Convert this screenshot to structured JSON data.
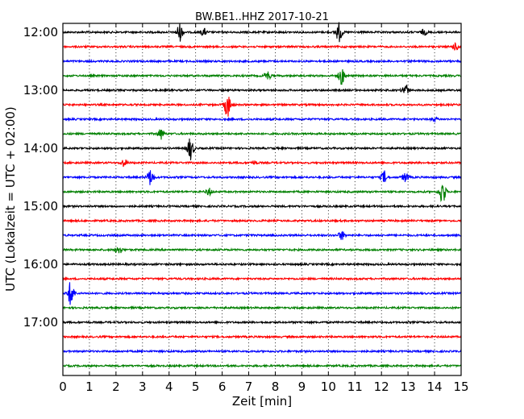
{
  "chart_data": {
    "type": "line",
    "title": "BW.BE1..HHZ 2017-10-21",
    "xlabel": "Zeit  [min]",
    "ylabel": "UTC (Lokalzeit = UTC + 02:00)",
    "xlim": [
      0,
      15
    ],
    "x_ticks": [
      "0",
      "1",
      "2",
      "3",
      "4",
      "5",
      "6",
      "7",
      "8",
      "9",
      "10",
      "11",
      "12",
      "13",
      "14",
      "15"
    ],
    "y_tick_labels": [
      "12:00",
      "13:00",
      "14:00",
      "15:00",
      "16:00",
      "17:00"
    ],
    "grid": "vertical-dotted",
    "trace_interval_min": 15,
    "colors": [
      "#000000",
      "#ff0000",
      "#0000ff",
      "#008000"
    ],
    "traces": [
      {
        "start": "12:00",
        "events": [
          {
            "t": 4.4,
            "amp": 1.0
          },
          {
            "t": 5.3,
            "amp": 0.4
          },
          {
            "t": 10.4,
            "amp": 1.1
          },
          {
            "t": 13.6,
            "amp": 0.3
          }
        ]
      },
      {
        "start": "12:15",
        "events": [
          {
            "t": 14.8,
            "amp": 0.4
          }
        ]
      },
      {
        "start": "12:30",
        "events": []
      },
      {
        "start": "12:45",
        "events": [
          {
            "t": 7.7,
            "amp": 0.5
          },
          {
            "t": 10.5,
            "amp": 1.0
          }
        ]
      },
      {
        "start": "13:00",
        "events": [
          {
            "t": 12.9,
            "amp": 0.7
          }
        ]
      },
      {
        "start": "13:15",
        "events": [
          {
            "t": 6.2,
            "amp": 1.4
          }
        ]
      },
      {
        "start": "13:30",
        "events": [
          {
            "t": 14.0,
            "amp": 0.2
          }
        ]
      },
      {
        "start": "13:45",
        "events": [
          {
            "t": 3.7,
            "amp": 0.6
          }
        ]
      },
      {
        "start": "14:00",
        "events": [
          {
            "t": 4.8,
            "amp": 1.3
          }
        ]
      },
      {
        "start": "14:15",
        "events": [
          {
            "t": 2.3,
            "amp": 0.4
          },
          {
            "t": 7.2,
            "amp": 0.2
          }
        ]
      },
      {
        "start": "14:30",
        "events": [
          {
            "t": 3.3,
            "amp": 0.9
          },
          {
            "t": 12.1,
            "amp": 0.7
          },
          {
            "t": 12.9,
            "amp": 0.5
          }
        ]
      },
      {
        "start": "14:45",
        "events": [
          {
            "t": 5.5,
            "amp": 0.4
          },
          {
            "t": 14.3,
            "amp": 1.4
          }
        ]
      },
      {
        "start": "15:00",
        "events": []
      },
      {
        "start": "15:15",
        "events": []
      },
      {
        "start": "15:30",
        "events": [
          {
            "t": 10.5,
            "amp": 0.5
          }
        ]
      },
      {
        "start": "15:45",
        "events": [
          {
            "t": 2.1,
            "amp": 0.5
          }
        ]
      },
      {
        "start": "16:00",
        "events": []
      },
      {
        "start": "16:15",
        "events": []
      },
      {
        "start": "16:30",
        "events": [
          {
            "t": 0.3,
            "amp": 1.4
          }
        ]
      },
      {
        "start": "16:45",
        "events": []
      },
      {
        "start": "17:00",
        "events": []
      },
      {
        "start": "17:15",
        "events": []
      },
      {
        "start": "17:30",
        "events": []
      },
      {
        "start": "17:45",
        "events": []
      }
    ]
  }
}
